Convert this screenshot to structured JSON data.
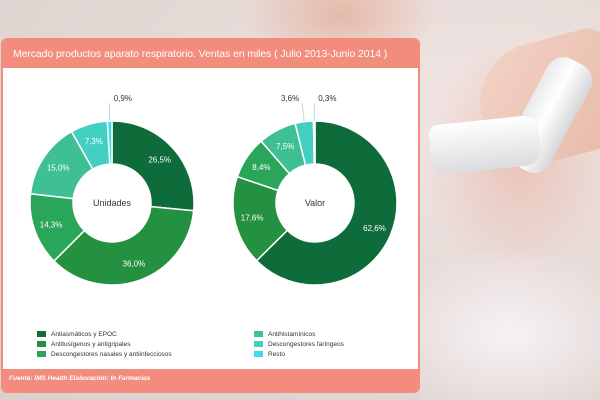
{
  "title": "Mercado productos aparato respiratorio. Ventas en miles ( Julio 2013-Junio 2014 )",
  "source": "Fuente: IMS Health Elaboración: In Farmacias",
  "colors": {
    "card_border": "#f28c7c",
    "antiasmaticos": "#0e6b3a",
    "antitusigenos": "#23913f",
    "descongestores_nasales": "#2aa65a",
    "antihistaminicos": "#3fbf94",
    "descongestores_faringeos": "#43d0c2",
    "resto": "#44d8e6"
  },
  "chart_data": [
    {
      "type": "pie",
      "variant": "donut",
      "center_label": "Unidades",
      "categories": [
        "Antiasmáticos y EPOC",
        "Antitusígenos y antigripales",
        "Descongestores nasales y antiinfecciosos",
        "Antihistamínicos",
        "Descongestores faríngeos",
        "Resto"
      ],
      "values": [
        26.5,
        36.0,
        14.3,
        15.0,
        7.3,
        0.9
      ],
      "value_labels": [
        "26,5%",
        "36,0%",
        "14,3%",
        "15,0%",
        "7,3%",
        "0,9%"
      ]
    },
    {
      "type": "pie",
      "variant": "donut",
      "center_label": "Valor",
      "categories": [
        "Antiasmáticos y EPOC",
        "Antitusígenos y antigripales",
        "Descongestores nasales y antiinfecciosos",
        "Antihistamínicos",
        "Descongestores faríngeos",
        "Resto"
      ],
      "values": [
        62.6,
        17.6,
        8.4,
        7.5,
        3.6,
        0.3
      ],
      "value_labels": [
        "62,6%",
        "17,6%",
        "8,4%",
        "7,5%",
        "3,6%",
        "0,3%"
      ]
    }
  ],
  "legend": {
    "left": [
      {
        "label": "Antiasmáticos y EPOC",
        "color": "#0e6b3a"
      },
      {
        "label": "Antitusígenos y antigripales",
        "color": "#23913f"
      },
      {
        "label": "Descongestores nasales y antiinfecciosos",
        "color": "#2aa65a"
      }
    ],
    "right": [
      {
        "label": "Antihistamínicos",
        "color": "#3fbf94"
      },
      {
        "label": "Descongestores  faríngeos",
        "color": "#43d0c2"
      },
      {
        "label": "Resto",
        "color": "#44d8e6"
      }
    ]
  }
}
